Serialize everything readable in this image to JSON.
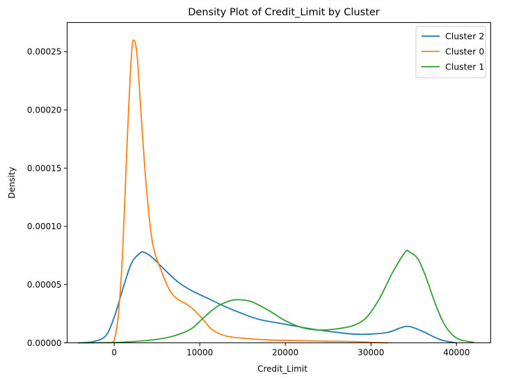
{
  "chart_data": {
    "type": "line",
    "title": "Density Plot of Credit_Limit by Cluster",
    "xlabel": "Credit_Limit",
    "ylabel": "Density",
    "xlim": [
      -5500,
      44000
    ],
    "ylim": [
      0,
      0.000275
    ],
    "xticks": [
      {
        "value": 0,
        "label": "0"
      },
      {
        "value": 10000,
        "label": "10000"
      },
      {
        "value": 20000,
        "label": "20000"
      },
      {
        "value": 30000,
        "label": "30000"
      },
      {
        "value": 40000,
        "label": "40000"
      }
    ],
    "yticks": [
      {
        "value": 0,
        "label": "0.00000"
      },
      {
        "value": 5e-05,
        "label": "0.00005"
      },
      {
        "value": 0.0001,
        "label": "0.00010"
      },
      {
        "value": 0.00015,
        "label": "0.00015"
      },
      {
        "value": 0.0002,
        "label": "0.00020"
      },
      {
        "value": 0.00025,
        "label": "0.00025"
      }
    ],
    "grid": false,
    "legend_position": "top-right",
    "series": [
      {
        "name": "Cluster 2",
        "color": "#1f77b4",
        "points": [
          [
            -4200,
            0
          ],
          [
            -2500,
            1e-06
          ],
          [
            -1000,
            6e-06
          ],
          [
            0,
            2.2e-05
          ],
          [
            1000,
            4.6e-05
          ],
          [
            2000,
            6.8e-05
          ],
          [
            3000,
            7.7e-05
          ],
          [
            3500,
            7.77e-05
          ],
          [
            4500,
            7.3e-05
          ],
          [
            6000,
            6.2e-05
          ],
          [
            7500,
            5.2e-05
          ],
          [
            9000,
            4.5e-05
          ],
          [
            11000,
            3.8e-05
          ],
          [
            13000,
            3.1e-05
          ],
          [
            15000,
            2.5e-05
          ],
          [
            17000,
            2e-05
          ],
          [
            20000,
            1.6e-05
          ],
          [
            23000,
            1.2e-05
          ],
          [
            26000,
            9e-06
          ],
          [
            28000,
            7.5e-06
          ],
          [
            30000,
            7.5e-06
          ],
          [
            32000,
            9e-06
          ],
          [
            33500,
            1.3e-05
          ],
          [
            34500,
            1.4e-05
          ],
          [
            36000,
            1e-05
          ],
          [
            38000,
            3e-06
          ],
          [
            39500,
            5e-07
          ],
          [
            40000,
            0
          ]
        ]
      },
      {
        "name": "Cluster 0",
        "color": "#ff7f0e",
        "points": [
          [
            -400,
            0
          ],
          [
            0,
            2e-06
          ],
          [
            500,
            2.5e-05
          ],
          [
            1000,
            8e-05
          ],
          [
            1500,
            0.00017
          ],
          [
            2000,
            0.000245
          ],
          [
            2300,
            0.00026
          ],
          [
            2700,
            0.000245
          ],
          [
            3200,
            0.00019
          ],
          [
            3800,
            0.00013
          ],
          [
            4500,
            8.5e-05
          ],
          [
            5500,
            6.2e-05
          ],
          [
            6500,
            4.5e-05
          ],
          [
            7500,
            3.7e-05
          ],
          [
            8500,
            3.3e-05
          ],
          [
            9500,
            2.7e-05
          ],
          [
            10500,
            1.9e-05
          ],
          [
            11500,
            1.1e-05
          ],
          [
            13000,
            6e-06
          ],
          [
            15000,
            4e-06
          ],
          [
            18000,
            2.5e-06
          ],
          [
            21000,
            2e-06
          ],
          [
            24000,
            1.5e-06
          ],
          [
            27000,
            1.2e-06
          ],
          [
            29000,
            8e-07
          ],
          [
            30500,
            3e-07
          ],
          [
            32000,
            0
          ]
        ]
      },
      {
        "name": "Cluster 1",
        "color": "#2ca02c",
        "points": [
          [
            -4200,
            0
          ],
          [
            0,
            3e-07
          ],
          [
            3000,
            1.5e-06
          ],
          [
            5000,
            3e-06
          ],
          [
            7000,
            6e-06
          ],
          [
            9000,
            1.2e-05
          ],
          [
            10500,
            2.2e-05
          ],
          [
            12000,
            3.1e-05
          ],
          [
            13500,
            3.6e-05
          ],
          [
            14500,
            3.7e-05
          ],
          [
            16000,
            3.55e-05
          ],
          [
            18000,
            2.8e-05
          ],
          [
            20000,
            1.9e-05
          ],
          [
            22000,
            1.3e-05
          ],
          [
            24000,
            1.1e-05
          ],
          [
            26000,
            1.2e-05
          ],
          [
            28000,
            1.5e-05
          ],
          [
            29500,
            2.2e-05
          ],
          [
            31000,
            3.8e-05
          ],
          [
            32500,
            6e-05
          ],
          [
            34000,
            7.78e-05
          ],
          [
            34500,
            7.8e-05
          ],
          [
            35500,
            7.2e-05
          ],
          [
            36500,
            5.5e-05
          ],
          [
            37500,
            3.4e-05
          ],
          [
            38500,
            1.7e-05
          ],
          [
            39500,
            7e-06
          ],
          [
            40500,
            2.5e-06
          ],
          [
            42000,
            5e-07
          ]
        ]
      }
    ]
  }
}
